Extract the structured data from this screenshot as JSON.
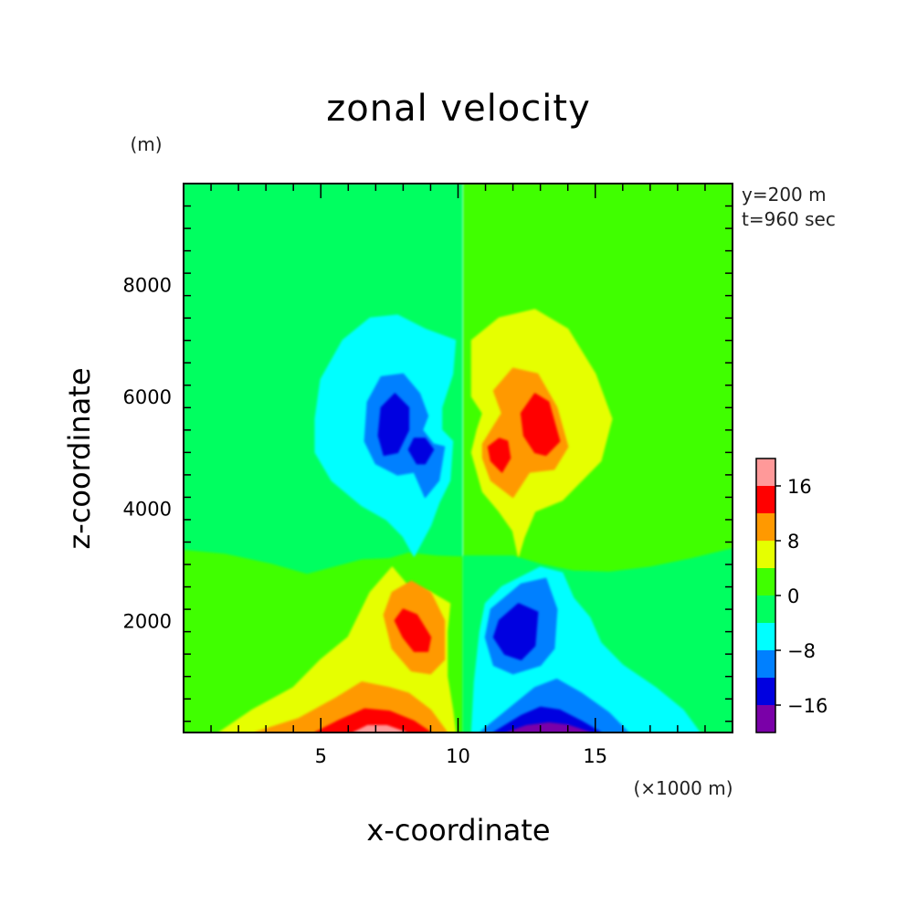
{
  "chart_data": {
    "type": "heatmap",
    "title": "zonal velocity",
    "xlabel": "x-coordinate",
    "ylabel": "z-coordinate",
    "x_unit_label": "(×1000 m)",
    "y_unit_label": "(m)",
    "annotations": [
      "y=200 m",
      "t=960 sec"
    ],
    "xlim": [
      0,
      20
    ],
    "ylim": [
      0,
      9800
    ],
    "x_ticks": [
      5,
      10,
      15
    ],
    "y_ticks": [
      2000,
      4000,
      6000,
      8000
    ],
    "colorbar": {
      "levels": [
        -20,
        -16,
        -12,
        -8,
        -4,
        0,
        4,
        8,
        12,
        16,
        20
      ],
      "labels": [
        "16",
        "8",
        "0",
        "-8",
        "-16"
      ],
      "label_values": [
        16,
        8,
        0,
        -8,
        -16
      ],
      "colors": [
        "#7a00a8",
        "#0000e0",
        "#0080ff",
        "#00ffff",
        "#00ff60",
        "#40ff00",
        "#e6ff00",
        "#ff9900",
        "#ff0000",
        "#ff9999"
      ]
    },
    "features": [
      {
        "name": "upper negative core",
        "x": 7.7,
        "z": 5400,
        "value": -14
      },
      {
        "name": "upper negative secondary core",
        "x": 8.6,
        "z": 5000,
        "value": -13
      },
      {
        "name": "upper positive core",
        "x": 12.6,
        "z": 5400,
        "value": 14
      },
      {
        "name": "upper positive secondary core",
        "x": 11.5,
        "z": 5000,
        "value": 13
      },
      {
        "name": "lower positive core",
        "x": 8.3,
        "z": 1800,
        "value": 14
      },
      {
        "name": "lower negative core",
        "x": 12.0,
        "z": 1800,
        "value": -14
      },
      {
        "name": "surface positive maximum",
        "x": 7.0,
        "z": 0,
        "value": 18
      },
      {
        "name": "surface negative minimum",
        "x": 13.3,
        "z": 0,
        "value": -18
      }
    ]
  }
}
